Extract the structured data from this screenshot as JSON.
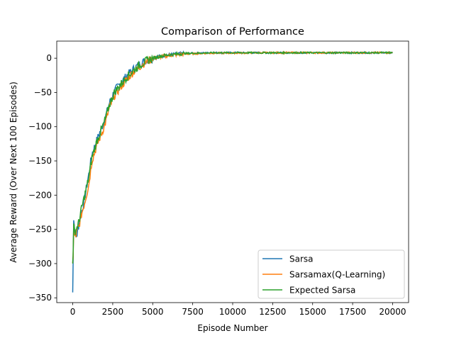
{
  "chart_data": {
    "type": "line",
    "title": "Comparison of Performance",
    "xlabel": "Episode Number",
    "ylabel": "Average Reward (Over Next 100 Episodes)",
    "xlim": [
      -1000,
      21000
    ],
    "ylim": [
      -357,
      25
    ],
    "xticks": [
      0,
      2500,
      5000,
      7500,
      10000,
      12500,
      15000,
      17500,
      20000
    ],
    "xtick_labels": [
      "0",
      "2500",
      "5000",
      "7500",
      "10000",
      "12500",
      "15000",
      "17500",
      "20000"
    ],
    "yticks": [
      0,
      -50,
      -100,
      -150,
      -200,
      -250,
      -300,
      -350
    ],
    "ytick_labels": [
      "0",
      "−50",
      "−100",
      "−150",
      "−200",
      "−250",
      "−300",
      "−350"
    ],
    "grid": false,
    "legend_position": "bottom-right",
    "series": [
      {
        "name": "Sarsa",
        "color": "#1f77b4",
        "x": [
          0,
          20,
          60,
          120,
          200,
          300,
          400,
          500,
          700,
          1000,
          1200,
          1500,
          2000,
          2300,
          2600,
          3000,
          3400,
          3800,
          4200,
          4600,
          5000,
          5500,
          6000,
          6500,
          7000,
          8000,
          9000,
          10000,
          12000,
          14000,
          16000,
          18000,
          20000
        ],
        "y": [
          -342,
          -300,
          -236,
          -250,
          -262,
          -255,
          -240,
          -230,
          -210,
          -170,
          -140,
          -120,
          -90,
          -65,
          -48,
          -36,
          -25,
          -16,
          -8,
          -3,
          0,
          3,
          5,
          6,
          7,
          7.5,
          8,
          8,
          8,
          8,
          8,
          8,
          8
        ]
      },
      {
        "name": "Sarsamax(Q-Learning)",
        "color": "#ff7f0e",
        "x": [
          0,
          20,
          60,
          120,
          200,
          300,
          400,
          500,
          700,
          1000,
          1200,
          1500,
          2000,
          2300,
          2600,
          3000,
          3400,
          3800,
          4200,
          4600,
          5000,
          5500,
          6000,
          6500,
          7000,
          8000,
          9000,
          10000,
          12000,
          14000,
          16000,
          18000,
          20000
        ],
        "y": [
          -305,
          -290,
          -255,
          -262,
          -258,
          -250,
          -245,
          -232,
          -215,
          -185,
          -150,
          -128,
          -98,
          -72,
          -55,
          -42,
          -30,
          -20,
          -12,
          -5,
          -1,
          2,
          4,
          5,
          6,
          7,
          7.5,
          7.5,
          8,
          8,
          8,
          8,
          8
        ]
      },
      {
        "name": "Expected Sarsa",
        "color": "#2ca02c",
        "x": [
          0,
          20,
          60,
          120,
          200,
          300,
          400,
          500,
          700,
          1000,
          1200,
          1500,
          2000,
          2300,
          2600,
          3000,
          3400,
          3800,
          4200,
          4600,
          5000,
          5500,
          6000,
          6500,
          7000,
          8000,
          9000,
          10000,
          12000,
          14000,
          16000,
          18000,
          20000
        ],
        "y": [
          -300,
          -285,
          -245,
          -255,
          -250,
          -245,
          -238,
          -225,
          -205,
          -175,
          -145,
          -122,
          -92,
          -68,
          -50,
          -38,
          -27,
          -18,
          -10,
          -4,
          0,
          3,
          5,
          6,
          7,
          7.5,
          8,
          8,
          8,
          8,
          8,
          8,
          8
        ]
      }
    ]
  }
}
